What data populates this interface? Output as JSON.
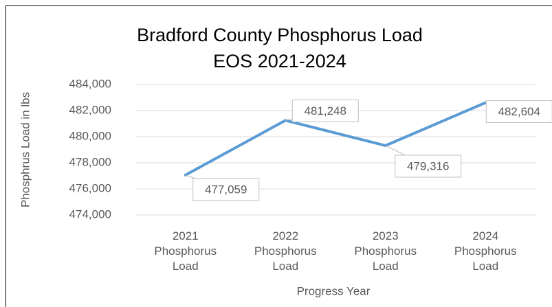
{
  "chart_data": {
    "type": "line",
    "title": "Bradford County Phosphorus Load EOS 2021-2024",
    "x_label": "Progress Year",
    "y_label": "Phosphrus Load in lbs",
    "categories": [
      "2021 Phosphorus Load",
      "2022 Phosphorus Load",
      "2023 Phosphorus Load",
      "2024 Phosphorus Load"
    ],
    "series": [
      {
        "name": "Phosphorus Load",
        "color": "#5b9bd5",
        "values": [
          477059,
          481248,
          479316,
          482604
        ],
        "value_labels": [
          "477,059",
          "481,248",
          "479,316",
          "482,604"
        ]
      }
    ],
    "ylim": [
      474000,
      484000
    ],
    "yticks": [
      {
        "value": 474000,
        "label": "474,000"
      },
      {
        "value": 476000,
        "label": "476,000"
      },
      {
        "value": 478000,
        "label": "478,000"
      },
      {
        "value": 480000,
        "label": "480,000"
      },
      {
        "value": 482000,
        "label": "482,000"
      },
      {
        "value": 484000,
        "label": "484,000"
      }
    ],
    "grid": true
  }
}
